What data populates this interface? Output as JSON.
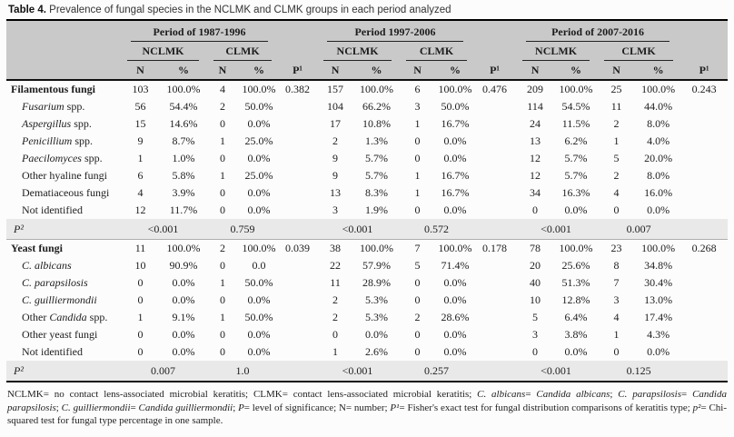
{
  "title": {
    "label": "Table 4.",
    "caption": "Prevalence of fungal species in the NCLMK and CLMK groups in each period analyzed"
  },
  "table": {
    "periods": [
      "Period of 1987-1996",
      "Period 1997-2006",
      "Period of 2007-2016"
    ],
    "group_labels": [
      "NCLMK",
      "CLMK"
    ],
    "col_n": "N",
    "col_pct": "%",
    "col_p1": "P¹",
    "p2_label": "P²",
    "sections": [
      {
        "rows": [
          {
            "label": {
              "pre": "Filamentous fungi",
              "italic": "",
              "post": ""
            },
            "bold": true,
            "indent": false,
            "values": [
              "103",
              "100.0%",
              "4",
              "100.0%",
              "0.382",
              "157",
              "100.0%",
              "6",
              "100.0%",
              "0.476",
              "209",
              "100.0%",
              "25",
              "100.0%",
              "0.243"
            ]
          },
          {
            "label": {
              "pre": "",
              "italic": "Fusarium",
              "post": " spp."
            },
            "bold": false,
            "indent": true,
            "values": [
              "56",
              "54.4%",
              "2",
              "50.0%",
              "",
              "104",
              "66.2%",
              "3",
              "50.0%",
              "",
              "114",
              "54.5%",
              "11",
              "44.0%",
              ""
            ]
          },
          {
            "label": {
              "pre": "",
              "italic": "Aspergillus",
              "post": " spp."
            },
            "bold": false,
            "indent": true,
            "values": [
              "15",
              "14.6%",
              "0",
              "0.0%",
              "",
              "17",
              "10.8%",
              "1",
              "16.7%",
              "",
              "24",
              "11.5%",
              "2",
              "8.0%",
              ""
            ]
          },
          {
            "label": {
              "pre": "",
              "italic": "Penicillium",
              "post": " spp."
            },
            "bold": false,
            "indent": true,
            "values": [
              "9",
              "8.7%",
              "1",
              "25.0%",
              "",
              "2",
              "1.3%",
              "0",
              "0.0%",
              "",
              "13",
              "6.2%",
              "1",
              "4.0%",
              ""
            ]
          },
          {
            "label": {
              "pre": "",
              "italic": "Paecilomyces",
              "post": " spp."
            },
            "bold": false,
            "indent": true,
            "values": [
              "1",
              "1.0%",
              "0",
              "0.0%",
              "",
              "9",
              "5.7%",
              "0",
              "0.0%",
              "",
              "12",
              "5.7%",
              "5",
              "20.0%",
              ""
            ]
          },
          {
            "label": {
              "pre": "Other hyaline fungi",
              "italic": "",
              "post": ""
            },
            "bold": false,
            "indent": true,
            "values": [
              "6",
              "5.8%",
              "1",
              "25.0%",
              "",
              "9",
              "5.7%",
              "1",
              "16.7%",
              "",
              "12",
              "5.7%",
              "2",
              "8.0%",
              ""
            ]
          },
          {
            "label": {
              "pre": "Dematiaceous fungi",
              "italic": "",
              "post": ""
            },
            "bold": false,
            "indent": true,
            "values": [
              "4",
              "3.9%",
              "0",
              "0.0%",
              "",
              "13",
              "8.3%",
              "1",
              "16.7%",
              "",
              "34",
              "16.3%",
              "4",
              "16.0%",
              ""
            ]
          },
          {
            "label": {
              "pre": "Not identified",
              "italic": "",
              "post": ""
            },
            "bold": false,
            "indent": true,
            "values": [
              "12",
              "11.7%",
              "0",
              "0.0%",
              "",
              "3",
              "1.9%",
              "0",
              "0.0%",
              "",
              "0",
              "0.0%",
              "0",
              "0.0%",
              ""
            ]
          }
        ],
        "pvalues": [
          "<0.001",
          "0.759",
          "<0.001",
          "0.572",
          "<0.001",
          "0.007"
        ]
      },
      {
        "rows": [
          {
            "label": {
              "pre": "Yeast fungi",
              "italic": "",
              "post": ""
            },
            "bold": true,
            "indent": false,
            "values": [
              "11",
              "100.0%",
              "2",
              "100.0%",
              "0.039",
              "38",
              "100.0%",
              "7",
              "100.0%",
              "0.178",
              "78",
              "100.0%",
              "23",
              "100.0%",
              "0.268"
            ]
          },
          {
            "label": {
              "pre": "",
              "italic": "C. albicans",
              "post": ""
            },
            "bold": false,
            "indent": true,
            "values": [
              "10",
              "90.9%",
              "0",
              "0.0",
              "",
              "22",
              "57.9%",
              "5",
              "71.4%",
              "",
              "20",
              "25.6%",
              "8",
              "34.8%",
              ""
            ]
          },
          {
            "label": {
              "pre": "",
              "italic": "C. parapsilosis",
              "post": ""
            },
            "bold": false,
            "indent": true,
            "values": [
              "0",
              "0.0%",
              "1",
              "50.0%",
              "",
              "11",
              "28.9%",
              "0",
              "0.0%",
              "",
              "40",
              "51.3%",
              "7",
              "30.4%",
              ""
            ]
          },
          {
            "label": {
              "pre": "",
              "italic": "C. guilliermondii",
              "post": ""
            },
            "bold": false,
            "indent": true,
            "values": [
              "0",
              "0.0%",
              "0",
              "0.0%",
              "",
              "2",
              "5.3%",
              "0",
              "0.0%",
              "",
              "10",
              "12.8%",
              "3",
              "13.0%",
              ""
            ]
          },
          {
            "label": {
              "pre": "Other ",
              "italic": "Candida",
              "post": " spp."
            },
            "bold": false,
            "indent": true,
            "values": [
              "1",
              "9.1%",
              "1",
              "50.0%",
              "",
              "2",
              "5.3%",
              "2",
              "28.6%",
              "",
              "5",
              "6.4%",
              "4",
              "17.4%",
              ""
            ]
          },
          {
            "label": {
              "pre": "Other yeast fungi",
              "italic": "",
              "post": ""
            },
            "bold": false,
            "indent": true,
            "values": [
              "0",
              "0.0%",
              "0",
              "0.0%",
              "",
              "0",
              "0.0%",
              "0",
              "0.0%",
              "",
              "3",
              "3.8%",
              "1",
              "4.3%",
              ""
            ]
          },
          {
            "label": {
              "pre": "Not identified",
              "italic": "",
              "post": ""
            },
            "bold": false,
            "indent": true,
            "values": [
              "0",
              "0.0%",
              "0",
              "0.0%",
              "",
              "1",
              "2.6%",
              "0",
              "0.0%",
              "",
              "0",
              "0.0%",
              "0",
              "0.0%",
              ""
            ]
          }
        ],
        "pvalues": [
          "0.007",
          "1.0",
          "<0.001",
          "0.257",
          "<0.001",
          "0.125"
        ]
      }
    ]
  },
  "footnote": {
    "segments": [
      {
        "i": false,
        "t": "NCLMK= no contact lens-associated microbial keratitis; CLMK= contact lens-associated microbial keratitis; "
      },
      {
        "i": true,
        "t": "C. albicans"
      },
      {
        "i": false,
        "t": "= "
      },
      {
        "i": true,
        "t": "Candida albicans"
      },
      {
        "i": false,
        "t": "; "
      },
      {
        "i": true,
        "t": "C. parapsilosis"
      },
      {
        "i": false,
        "t": "= "
      },
      {
        "i": true,
        "t": "Candida parapsilosis"
      },
      {
        "i": false,
        "t": "; "
      },
      {
        "i": true,
        "t": "C. guilliermondii"
      },
      {
        "i": false,
        "t": "= "
      },
      {
        "i": true,
        "t": "Candida guilliermondii"
      },
      {
        "i": false,
        "t": "; "
      },
      {
        "i": true,
        "t": "P"
      },
      {
        "i": false,
        "t": "= level of significance; N= number; "
      },
      {
        "i": true,
        "t": "P¹"
      },
      {
        "i": false,
        "t": "= Fisher's exact test for fungal distribution comparisons of keratitis type; "
      },
      {
        "i": true,
        "t": "p²"
      },
      {
        "i": false,
        "t": "= Chi-squared test for fungal type percentage in one sample."
      }
    ]
  }
}
